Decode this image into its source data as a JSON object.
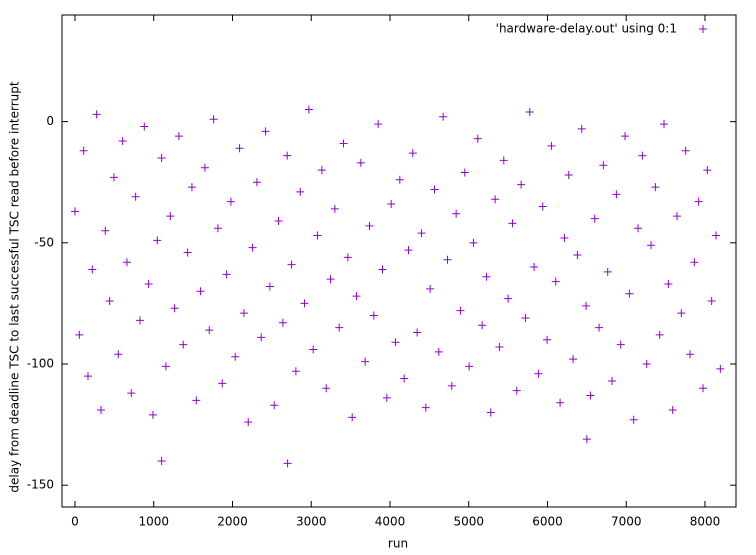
{
  "chart_data": {
    "type": "scatter",
    "x_label": "run",
    "y_label": "delay from deadline TSC to last successful TSC read before interrupt",
    "xlim": [
      -165,
      8394
    ],
    "ylim": [
      -159,
      44
    ],
    "xticks": [
      0,
      1000,
      2000,
      3000,
      4000,
      5000,
      6000,
      7000,
      8000
    ],
    "yticks": [
      -150,
      -100,
      -50,
      0
    ],
    "legend": "top right",
    "grid": false,
    "x": [
      0,
      55,
      110,
      165,
      220,
      275,
      330,
      385,
      440,
      495,
      550,
      605,
      660,
      715,
      770,
      825,
      880,
      935,
      990,
      1045,
      1100,
      1155,
      1210,
      1265,
      1320,
      1375,
      1430,
      1485,
      1540,
      1595,
      1650,
      1705,
      1760,
      1815,
      1870,
      1925,
      1980,
      2035,
      2090,
      2145,
      2200,
      2255,
      2310,
      2365,
      2420,
      2475,
      2530,
      2585,
      2640,
      2695,
      2750,
      2805,
      2860,
      2915,
      2970,
      3025,
      3080,
      3135,
      3190,
      3245,
      3300,
      3355,
      3410,
      3465,
      3520,
      3575,
      3630,
      3685,
      3740,
      3795,
      3850,
      3905,
      3960,
      4015,
      4070,
      4125,
      4180,
      4235,
      4290,
      4345,
      4400,
      4455,
      4510,
      4565,
      4620,
      4675,
      4730,
      4785,
      4840,
      4895,
      4950,
      5005,
      5060,
      5115,
      5170,
      5225,
      5280,
      5335,
      5390,
      5445,
      5500,
      5555,
      5610,
      5665,
      5720,
      5775,
      5830,
      5885,
      5940,
      5995,
      6050,
      6105,
      6160,
      6215,
      6270,
      6325,
      6380,
      6435,
      6490,
      6545,
      6600,
      6655,
      6710,
      6765,
      6820,
      6875,
      6930,
      6985,
      7040,
      7095,
      7150,
      7205,
      7260,
      7315,
      7370,
      7425,
      7480,
      7535,
      7590,
      7645,
      7700,
      7755,
      7810,
      7865,
      7920,
      7975,
      8030,
      8085,
      8140,
      8195,
      1100,
      2700,
      6500
    ],
    "series": [
      {
        "name": "'hardware-delay.out' using 0:1",
        "color": "#9400d3",
        "values": [
          -37,
          -88,
          -12,
          -105,
          -61,
          3,
          -119,
          -45,
          -74,
          -23,
          -96,
          -8,
          -58,
          -112,
          -31,
          -82,
          -2,
          -67,
          -121,
          -49,
          -15,
          -101,
          -39,
          -77,
          -6,
          -92,
          -54,
          -27,
          -115,
          -70,
          -19,
          -86,
          1,
          -44,
          -108,
          -63,
          -33,
          -97,
          -11,
          -79,
          -124,
          -52,
          -25,
          -89,
          -4,
          -68,
          -117,
          -41,
          -83,
          -14,
          -59,
          -103,
          -29,
          -75,
          5,
          -94,
          -47,
          -20,
          -110,
          -65,
          -36,
          -85,
          -9,
          -56,
          -122,
          -72,
          -17,
          -99,
          -43,
          -80,
          -1,
          -61,
          -114,
          -34,
          -91,
          -24,
          -106,
          -53,
          -13,
          -87,
          -46,
          -118,
          -69,
          -28,
          -95,
          2,
          -57,
          -109,
          -38,
          -78,
          -21,
          -101,
          -50,
          -7,
          -84,
          -64,
          -120,
          -32,
          -93,
          -16,
          -73,
          -42,
          -111,
          -26,
          -81,
          4,
          -60,
          -104,
          -35,
          -90,
          -10,
          -66,
          -116,
          -48,
          -22,
          -98,
          -55,
          -3,
          -76,
          -113,
          -40,
          -85,
          -18,
          -62,
          -107,
          -30,
          -92,
          -6,
          -71,
          -123,
          -44,
          -14,
          -100,
          -51,
          -27,
          -88,
          -1,
          -67,
          -119,
          -39,
          -79,
          -12,
          -96,
          -58,
          -33,
          -110,
          -20,
          -74,
          -47,
          -102,
          -140,
          -141,
          -131
        ]
      }
    ]
  }
}
